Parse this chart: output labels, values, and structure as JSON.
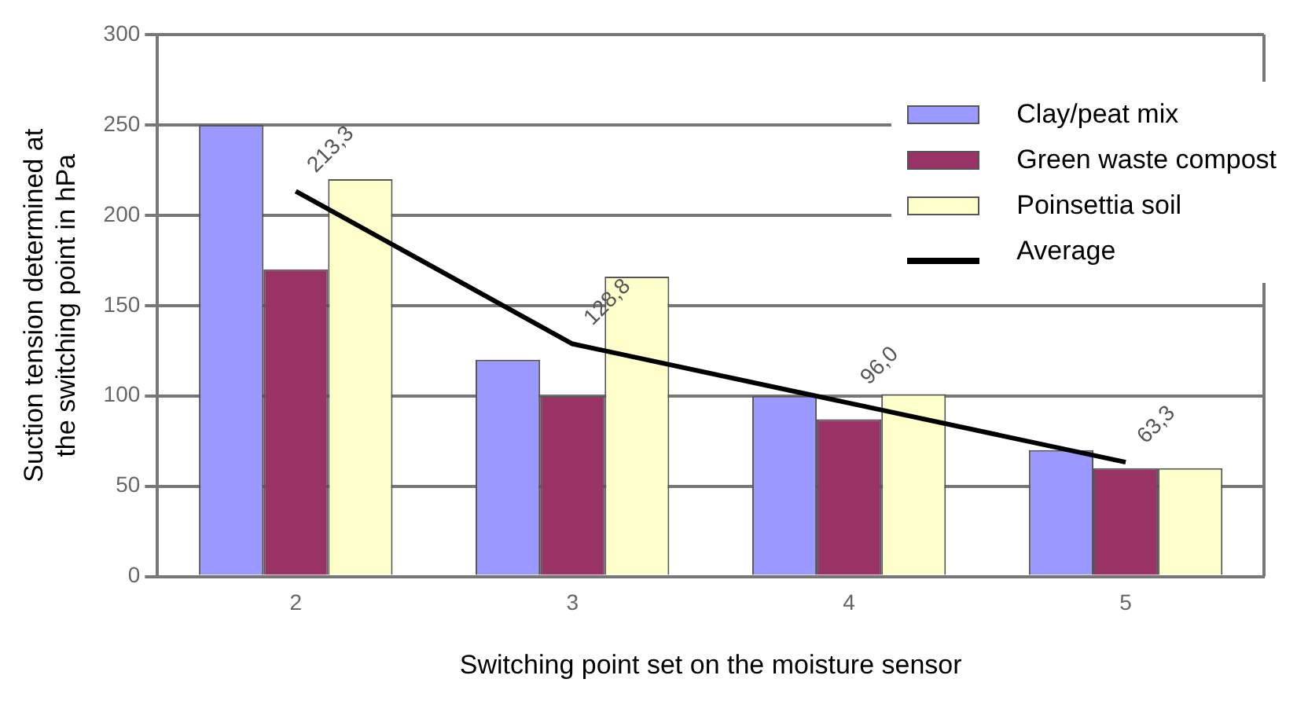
{
  "chart_data": {
    "type": "bar",
    "xlabel": "Switching point set on the moisture sensor",
    "ylabel": "Suction tension determined at the switching point in hPa",
    "categories": [
      "2",
      "3",
      "4",
      "5"
    ],
    "series": [
      {
        "name": "Clay/peat mix",
        "color": "#9999ff",
        "values": [
          250,
          120,
          100,
          70
        ]
      },
      {
        "name": "Green waste compost",
        "color": "#993366",
        "values": [
          170,
          100,
          87,
          60
        ]
      },
      {
        "name": "Poinsettia soil",
        "color": "#ffffcc",
        "values": [
          220,
          166,
          101,
          60
        ]
      },
      {
        "name": "Average",
        "type": "line",
        "color": "#000000",
        "values": [
          213.3,
          128.8,
          96.0,
          63.3
        ],
        "value_labels": [
          "213,3",
          "128,8",
          "96,0",
          "63,3"
        ]
      }
    ],
    "ylim": [
      0,
      300
    ],
    "yticks": [
      0,
      50,
      100,
      150,
      200,
      250,
      300
    ],
    "grid": "y",
    "legend": "top right",
    "marker": "none",
    "line_style": "solid"
  }
}
